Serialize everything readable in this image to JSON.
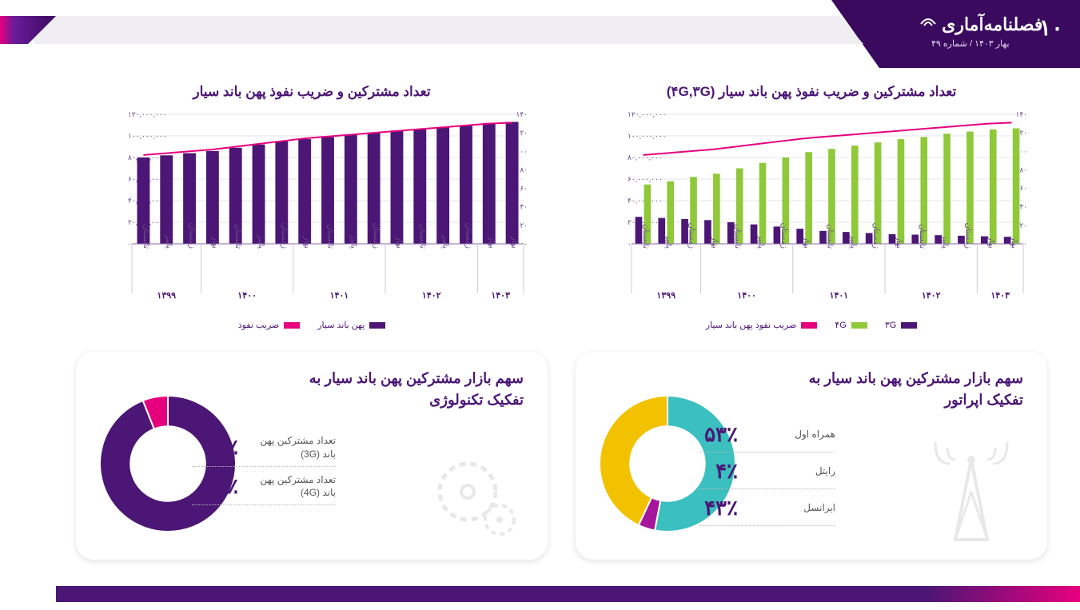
{
  "colors": {
    "purple_dark": "#4b1675",
    "purple": "#6a1b9a",
    "magenta": "#e6007e",
    "green": "#8fc93a",
    "teal": "#3bbfbf",
    "yellow": "#f2c200",
    "grey_line": "#d0c7db",
    "grey_icon": "#bfbfbf",
    "bg": "#ffffff"
  },
  "header": {
    "page_number": "۱۰",
    "title": "فصلنامه‌آماری",
    "subtitle": "بهار ۱۴۰۳ / شماره ۴۹"
  },
  "chart_left": {
    "type": "bar+line",
    "title": "تعداد مشترکین و ضریب نفوذ پهن باند سیار",
    "y_left_ticks_fa": [
      "۰",
      "۲۰,۰۰۰,۰۰۰",
      "۴۰,۰۰۰,۰۰۰",
      "۶۰,۰۰۰,۰۰۰",
      "۸۰,۰۰۰,۰۰۰",
      "۱۰۰,۰۰۰,۰۰۰",
      "۱۲۰,۰۰۰,۰۰۰"
    ],
    "y_left_ticks": [
      0,
      20000000,
      40000000,
      60000000,
      80000000,
      100000000,
      120000000
    ],
    "y_right_ticks_fa": [
      "۰",
      "۲۰",
      "۴۰",
      "۶۰",
      "۸۰",
      "۱۰۰",
      "۱۲۰",
      "۱۴۰"
    ],
    "y_right_ticks": [
      0,
      20,
      40,
      60,
      80,
      100,
      120,
      140
    ],
    "y_left_max": 120000000,
    "y_right_max": 140,
    "quarters_fa": [
      "تابستان",
      "پاییز",
      "زمستان",
      "بهار",
      "تابستان",
      "پاییز",
      "زمستان",
      "بهار",
      "تابستان",
      "پاییز",
      "زمستان",
      "بهار",
      "تابستان",
      "پاییز",
      "زمستان",
      "بهار",
      "بهار"
    ],
    "years_fa": [
      "۱۳۹۹",
      "۱۴۰۰",
      "۱۴۰۱",
      "۱۴۰۲",
      "۱۴۰۳"
    ],
    "year_spans": [
      [
        0,
        2
      ],
      [
        3,
        6
      ],
      [
        7,
        10
      ],
      [
        11,
        14
      ],
      [
        15,
        16
      ]
    ],
    "bars": [
      80000000,
      82000000,
      84000000,
      86000000,
      89000000,
      92000000,
      95000000,
      97000000,
      99000000,
      101000000,
      103000000,
      105000000,
      106000000,
      108000000,
      110000000,
      112000000,
      113000000
    ],
    "line": [
      96,
      98,
      100,
      102,
      105,
      108,
      111,
      114,
      116,
      118,
      120,
      122,
      124,
      126,
      128,
      130,
      131
    ],
    "bar_color": "#4b1675",
    "line_color": "#e6007e",
    "legend": [
      {
        "label": "پهن باند سیار",
        "color": "#4b1675"
      },
      {
        "label": "ضریب نفوذ",
        "color": "#e6007e"
      }
    ]
  },
  "chart_right": {
    "type": "grouped-bar+line",
    "title": "تعداد مشترکین و ضریب نفوذ پهن باند سیار (۴G,۳G)",
    "y_left_ticks_fa": [
      "۰",
      "۲۰,۰۰۰,۰۰۰",
      "۴۰,۰۰۰,۰۰۰",
      "۶۰,۰۰۰,۰۰۰",
      "۸۰,۰۰۰,۰۰۰",
      "۱۰۰,۰۰۰,۰۰۰",
      "۱۲۰,۰۰۰,۰۰۰"
    ],
    "y_left_ticks": [
      0,
      20000000,
      40000000,
      60000000,
      80000000,
      100000000,
      120000000
    ],
    "y_right_ticks_fa": [
      "۰",
      "۲۰",
      "۴۰",
      "۶۰",
      "۸۰",
      "۱۰۰",
      "۱۲۰",
      "۱۴۰"
    ],
    "y_right_ticks": [
      0,
      20,
      40,
      60,
      80,
      100,
      120,
      140
    ],
    "y_left_max": 120000000,
    "y_right_max": 140,
    "quarters_fa": [
      "تابستان",
      "پاییز",
      "زمستان",
      "بهار",
      "تابستان",
      "پاییز",
      "زمستان",
      "بهار",
      "تابستان",
      "پاییز",
      "زمستان",
      "بهار",
      "تابستان",
      "پاییز",
      "زمستان",
      "بهار",
      "بهار"
    ],
    "years_fa": [
      "۱۳۹۹",
      "۱۴۰۰",
      "۱۴۰۱",
      "۱۴۰۲",
      "۱۴۰۳"
    ],
    "year_spans": [
      [
        0,
        2
      ],
      [
        3,
        6
      ],
      [
        7,
        10
      ],
      [
        11,
        14
      ],
      [
        15,
        16
      ]
    ],
    "bars_3g": [
      25000000,
      24000000,
      23000000,
      22000000,
      20000000,
      18000000,
      16000000,
      14000000,
      12000000,
      11000000,
      10000000,
      9000000,
      8500000,
      8000000,
      7500000,
      7000000,
      6500000
    ],
    "bars_4g": [
      55000000,
      58000000,
      62000000,
      65000000,
      70000000,
      75000000,
      80000000,
      85000000,
      88000000,
      91000000,
      94000000,
      97000000,
      99000000,
      102000000,
      104000000,
      106000000,
      107000000
    ],
    "line": [
      96,
      98,
      100,
      102,
      105,
      108,
      111,
      114,
      116,
      118,
      120,
      122,
      124,
      126,
      128,
      130,
      131
    ],
    "color_3g": "#4b1675",
    "color_4g": "#8fc93a",
    "line_color": "#e6007e",
    "legend": [
      {
        "label": "۳G",
        "color": "#4b1675"
      },
      {
        "label": "۴G",
        "color": "#8fc93a"
      },
      {
        "label": "ضریب نفوذ پهن باند سیار",
        "color": "#e6007e"
      }
    ]
  },
  "card_left": {
    "title": "سهم بازار مشترکین پهن باند سیار به تفکیک تکنولوژی",
    "donut": {
      "slices": [
        {
          "label": "تعداد مشترکین پهن باند (4G)",
          "pct_fa": "۹۴٪",
          "value": 94,
          "color": "#4b1675"
        },
        {
          "label": "تعداد مشترکین پهن باند (3G)",
          "pct_fa": "۶٪",
          "value": 6,
          "color": "#e6007e"
        }
      ],
      "inner_ratio": 0.55
    }
  },
  "card_right": {
    "title": "سهم بازار مشترکین پهن باند سیار به تفکیک اپراتور",
    "donut": {
      "slices": [
        {
          "label": "همراه اول",
          "pct_fa": "۵۳٪",
          "value": 53,
          "color": "#3bbfbf"
        },
        {
          "label": "رایتل",
          "pct_fa": "۴٪",
          "value": 4,
          "color": "#a4179b"
        },
        {
          "label": "ایرانسل",
          "pct_fa": "۴۳٪",
          "value": 43,
          "color": "#f2c200"
        }
      ],
      "inner_ratio": 0.55
    }
  }
}
